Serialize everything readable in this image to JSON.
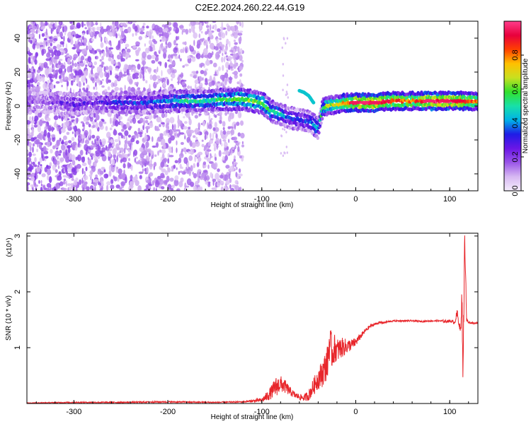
{
  "figure": {
    "title": "C2E2.2024.260.22.44.G19"
  },
  "chart_data": [
    {
      "type": "heatmap",
      "title": "C2E2.2024.260.22.44.G19",
      "xlabel": "Height of straight line (km)",
      "ylabel": "Frequency (Hz)",
      "xlim": [
        -350,
        130
      ],
      "ylim": [
        -50,
        50
      ],
      "x_ticks": [
        "-300",
        "-200",
        "-100",
        "0",
        "100"
      ],
      "x_tick_values": [
        -300,
        -200,
        -100,
        0,
        100
      ],
      "y_ticks": [
        "-40",
        "-20",
        "0",
        "20",
        "40"
      ],
      "y_tick_values": [
        -40,
        -20,
        0,
        20,
        40
      ],
      "colorbar": {
        "label": "Normalized spectral amplitude",
        "range": [
          0.0,
          1.0
        ],
        "ticks": [
          "0.0",
          "0.2",
          "0.4",
          "0.6",
          "0.8"
        ],
        "tick_values": [
          0.0,
          0.2,
          0.4,
          0.6,
          0.8
        ],
        "colormap": [
          "#f4ecfc",
          "#d7b8f2",
          "#9a55e8",
          "#6a16e6",
          "#1f1ce6",
          "#00b2e8",
          "#18e0a8",
          "#32e02c",
          "#c8e020",
          "#ffc000",
          "#ff4000",
          "#e8003c",
          "#ff3c8c"
        ]
      },
      "ridge": {
        "x": [
          -345,
          -320,
          -300,
          -280,
          -260,
          -240,
          -220,
          -200,
          -180,
          -160,
          -140,
          -120,
          -100,
          -90,
          -80,
          -70,
          -60,
          -50,
          -45,
          -40,
          -35,
          -30,
          -20,
          -10,
          0,
          20,
          40,
          60,
          80,
          100,
          110,
          120,
          130
        ],
        "freq": [
          2,
          2,
          1,
          2,
          2,
          2,
          2,
          3,
          3,
          3,
          4,
          4,
          2,
          -3,
          -5,
          -7,
          -8,
          -9,
          -11,
          -13,
          -1,
          0,
          1,
          2,
          2,
          2,
          3,
          3,
          3,
          3,
          3,
          3,
          3
        ],
        "amplitude": [
          0.15,
          0.2,
          0.25,
          0.22,
          0.3,
          0.3,
          0.35,
          0.4,
          0.5,
          0.5,
          0.55,
          0.6,
          0.6,
          0.5,
          0.45,
          0.35,
          0.3,
          0.35,
          0.4,
          0.5,
          0.55,
          0.65,
          0.7,
          0.8,
          0.95,
          0.95,
          0.85,
          0.8,
          0.95,
          0.95,
          0.9,
          0.85,
          0.8
        ]
      },
      "branch": {
        "x": [
          -60,
          -55,
          -50,
          -45
        ],
        "freq": [
          9,
          8,
          6,
          2
        ]
      },
      "noise_extent_x": [
        -350,
        -120
      ]
    },
    {
      "type": "line",
      "xlabel": "Height of straight line (km)",
      "ylabel": "SNR (10 * v/v)",
      "y_multiplier": "(x10⁴)",
      "xlim": [
        -350,
        130
      ],
      "ylim": [
        0,
        3.05
      ],
      "x_ticks": [
        "-300",
        "-200",
        "-100",
        "0",
        "100"
      ],
      "x_tick_values": [
        -300,
        -200,
        -100,
        0,
        100
      ],
      "y_ticks": [
        "1",
        "2",
        "3"
      ],
      "y_tick_values": [
        1,
        2,
        3
      ],
      "series": [
        {
          "color": "#e8262b",
          "x": [
            -350,
            -300,
            -250,
            -200,
            -150,
            -120,
            -100,
            -95,
            -90,
            -85,
            -80,
            -75,
            -70,
            -65,
            -60,
            -55,
            -50,
            -45,
            -40,
            -35,
            -30,
            -28,
            -25,
            -22,
            -20,
            -15,
            -10,
            -5,
            0,
            5,
            10,
            15,
            20,
            25,
            30,
            40,
            50,
            60,
            70,
            80,
            90,
            95,
            100,
            105,
            108,
            110,
            112,
            113,
            114,
            115,
            116,
            118,
            120,
            125,
            130
          ],
          "y": [
            0.01,
            0.02,
            0.02,
            0.03,
            0.02,
            0.03,
            0.06,
            0.12,
            0.2,
            0.3,
            0.35,
            0.3,
            0.22,
            0.15,
            0.12,
            0.1,
            0.15,
            0.3,
            0.45,
            0.55,
            0.75,
            1.1,
            0.9,
            1.0,
            0.95,
            1.0,
            1.02,
            1.05,
            1.1,
            1.2,
            1.3,
            1.38,
            1.42,
            1.45,
            1.45,
            1.48,
            1.48,
            1.48,
            1.47,
            1.48,
            1.48,
            1.47,
            1.48,
            1.45,
            1.6,
            1.42,
            1.3,
            2.0,
            0.6,
            1.6,
            3.05,
            1.5,
            1.45,
            1.44,
            1.44
          ],
          "noise_amplitude": [
            0.005,
            0.01,
            0.012,
            0.012,
            0.01,
            0.012,
            0.04,
            0.08,
            0.12,
            0.18,
            0.15,
            0.12,
            0.08,
            0.06,
            0.05,
            0.06,
            0.1,
            0.15,
            0.2,
            0.25,
            0.3,
            0.35,
            0.3,
            0.25,
            0.22,
            0.18,
            0.14,
            0.1,
            0.08,
            0.05,
            0.04,
            0.03,
            0.025,
            0.02,
            0.02,
            0.015,
            0.015,
            0.015,
            0.015,
            0.015,
            0.015,
            0.03,
            0.02,
            0.03,
            0.1,
            0.05,
            0.08,
            0.2,
            0.2,
            0.3,
            0.3,
            0.05,
            0.02,
            0.015,
            0.015
          ]
        }
      ]
    }
  ]
}
